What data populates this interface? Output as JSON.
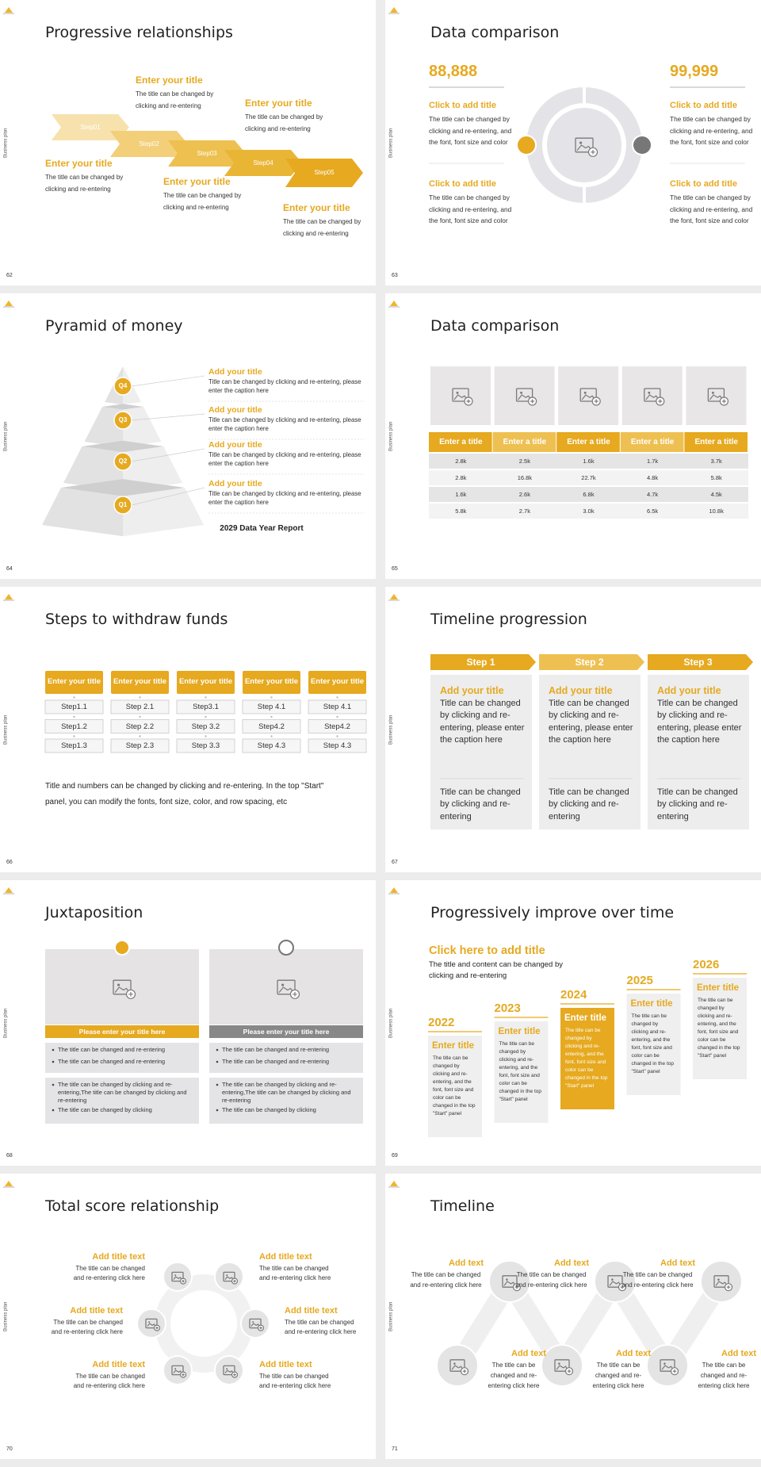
{
  "side_label": "Business plan",
  "slides": [
    {
      "page": "62",
      "title": "Progressive relationships",
      "steps": [
        "Step01",
        "Step02",
        "Step03",
        "Step04",
        "Step05"
      ],
      "items": [
        {
          "title": "Enter your title",
          "text": "The title can be changed by clicking and re-entering"
        },
        {
          "title": "Enter your title",
          "text": "The title can be changed by clicking and re-entering"
        },
        {
          "title": "Enter your title",
          "text": "The title can be changed by clicking and re-entering"
        },
        {
          "title": "Enter your title",
          "text": "The title can be changed by clicking and re-entering"
        },
        {
          "title": "Enter your title",
          "text": "The title can be changed by clicking and re-entering"
        }
      ]
    },
    {
      "page": "63",
      "title": "Data comparison",
      "left": {
        "value": "88,888",
        "items": [
          {
            "title": "Click to add title",
            "text": "The title can be changed by clicking and re-entering, and the font, font size and color"
          },
          {
            "title": "Click to add title",
            "text": "The title can be changed by clicking and re-entering, and the font, font size and color"
          }
        ]
      },
      "right": {
        "value": "99,999",
        "items": [
          {
            "title": "Click to add title",
            "text": "The title can be changed by clicking and re-entering, and the font, font size and color"
          },
          {
            "title": "Click to add title",
            "text": "The title can be changed by clicking and re-entering, and the font, font size and color"
          }
        ]
      }
    },
    {
      "page": "64",
      "title": "Pyramid of money",
      "levels": [
        "Q4",
        "Q3",
        "Q2",
        "Q1"
      ],
      "items": [
        {
          "title": "Add your title",
          "text": "Title can be changed by clicking and re-entering, please enter the caption here"
        },
        {
          "title": "Add your title",
          "text": "Title can be changed by clicking and re-entering, please enter the caption here"
        },
        {
          "title": "Add your title",
          "text": "Title can be changed by clicking and re-entering, please enter the caption here"
        },
        {
          "title": "Add your title",
          "text": "Title can be changed by clicking and re-entering, please enter the caption here"
        }
      ],
      "caption": "2029 Data Year Report"
    },
    {
      "page": "65",
      "title": "Data comparison",
      "headers": [
        "Enter a title",
        "Enter a title",
        "Enter a title",
        "Enter a title",
        "Enter a title"
      ],
      "rows": [
        [
          "2.8k",
          "2.5k",
          "1.6k",
          "1.7k",
          "3.7k"
        ],
        [
          "2.8k",
          "16.8k",
          "22.7k",
          "4.8k",
          "5.8k"
        ],
        [
          "1.6k",
          "2.6k",
          "6.8k",
          "4.7k",
          "4.5k"
        ],
        [
          "5.8k",
          "2.7k",
          "3.0k",
          "6.5k",
          "10.8k"
        ]
      ]
    },
    {
      "page": "66",
      "title": "Steps to withdraw funds",
      "columns": [
        {
          "header": "Enter your title",
          "steps": [
            "Step1.1",
            "Step1.2",
            "Step1.3"
          ]
        },
        {
          "header": "Enter your title",
          "steps": [
            "Step 2.1",
            "Step 2.2",
            "Step 2.3"
          ]
        },
        {
          "header": "Enter your title",
          "steps": [
            "Step3.1",
            "Step 3.2",
            "Step 3.3"
          ]
        },
        {
          "header": "Enter your title",
          "steps": [
            "Step 4.1",
            "Step4.2",
            "Step 4.3"
          ]
        },
        {
          "header": "Enter your title",
          "steps": [
            "Step 4.1",
            "Step4.2",
            "Step 4.3"
          ]
        }
      ],
      "note": "Title and numbers can be changed by clicking and re-entering. In the top \"Start\" panel, you can modify the fonts, font size, color, and row spacing, etc"
    },
    {
      "page": "67",
      "title": "Timeline progression",
      "steps": [
        {
          "label": "Step 1",
          "title": "Add your title",
          "text": "Title can be changed by clicking and re-entering, please enter the caption here",
          "text2": "Title can be changed by clicking and re-entering"
        },
        {
          "label": "Step 2",
          "title": "Add your title",
          "text": "Title can be changed by clicking and re-entering, please enter the caption here",
          "text2": "Title can be changed by clicking and re-entering"
        },
        {
          "label": "Step 3",
          "title": "Add your title",
          "text": "Title can be changed by clicking and re-entering, please enter the caption here",
          "text2": "Title can be changed by clicking and re-entering"
        }
      ]
    },
    {
      "page": "68",
      "title": "Juxtaposition",
      "panels": [
        {
          "banner": "Please enter your title here",
          "bullets": [
            "The title can be changed and re-entering",
            "The title can be changed and re-entering"
          ],
          "bullets2": [
            "The title can be changed by clicking and re-entering,The title can be changed by clicking and re-entering",
            "The title can be changed by clicking"
          ]
        },
        {
          "banner": "Please enter your title here",
          "bullets": [
            "The title can be changed and re-entering",
            "The title can be changed and re-entering"
          ],
          "bullets2": [
            "The title can be changed by clicking and re-entering,The title can be changed by clicking and re-entering",
            "The title can be changed by clicking"
          ]
        }
      ]
    },
    {
      "page": "69",
      "title": "Progressively improve over time",
      "headline": "Click here to add title",
      "intro": "The title and content can be changed by clicking and re-entering",
      "years": [
        {
          "year": "2022",
          "title": "Enter title",
          "text": "The title can be changed by clicking and re-entering, and the font, font size and color can be changed in the top \"Start\" panel"
        },
        {
          "year": "2023",
          "title": "Enter title",
          "text": "The title can be changed by clicking and re-entering, and the font, font size and color can be changed in the top \"Start\" panel"
        },
        {
          "year": "2024",
          "title": "Enter title",
          "text": "The title can be changed by clicking and re-entering, and the font, font size and color can be changed in the top \"Start\" panel"
        },
        {
          "year": "2025",
          "title": "Enter title",
          "text": "The title can be changed by clicking and re-entering, and the font, font size and color can be changed in the top \"Start\" panel"
        },
        {
          "year": "2026",
          "title": "Enter title",
          "text": "The title can be changed by clicking and re-entering, and the font, font size and color can be changed in the top \"Start\" panel"
        }
      ]
    },
    {
      "page": "70",
      "title": "Total score relationship",
      "items": [
        {
          "title": "Add title text",
          "text": "The title can be changed and re-entering click here"
        },
        {
          "title": "Add title text",
          "text": "The title can be changed and re-entering click here"
        },
        {
          "title": "Add title text",
          "text": "The title can be changed and re-entering click here"
        },
        {
          "title": "Add title text",
          "text": "The title can be changed and re-entering click here"
        },
        {
          "title": "Add title text",
          "text": "The title can be changed and re-entering click here"
        },
        {
          "title": "Add title text",
          "text": "The title can be changed and re-entering click here"
        }
      ]
    },
    {
      "page": "71",
      "title": "Timeline",
      "items": [
        {
          "title": "Add text",
          "text": "The title can be changed and re-entering click here"
        },
        {
          "title": "Add text",
          "text": "The title can be changed and re-entering click here"
        },
        {
          "title": "Add text",
          "text": "The title can be changed and re-entering click here"
        },
        {
          "title": "Add text",
          "text": "The title can be changed and re-entering click here"
        },
        {
          "title": "Add text",
          "text": "The title can be changed and re-entering click here"
        },
        {
          "title": "Add text",
          "text": "The title can be changed and re-entering click here"
        }
      ]
    }
  ]
}
